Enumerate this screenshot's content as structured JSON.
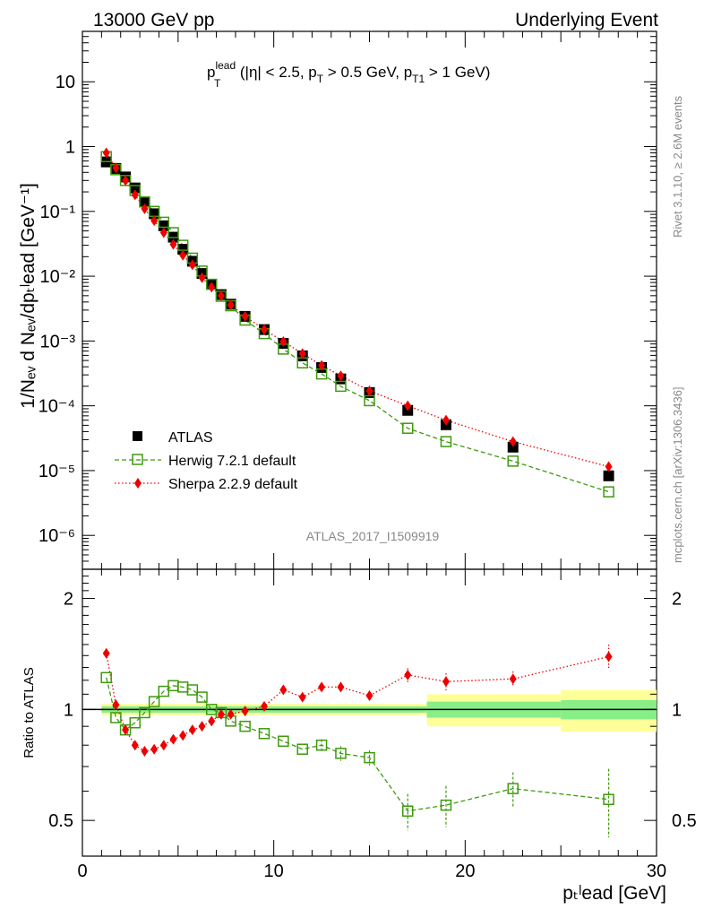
{
  "header": {
    "left": "13000 GeV pp",
    "right": "Underlying Event"
  },
  "plot_title": {
    "main": "p",
    "sup": "lead",
    "sub": "T",
    "rest1": " (|η| < 2.5, p",
    "sub2": "T",
    "rest2": " > 0.5 GeV, p",
    "sub3": "T1",
    "rest3": " > 1 GeV)"
  },
  "side": {
    "rivet": "Rivet 3.1.10, ≥ 2.6M events",
    "mcplots": "mcplots.cern.ch [arXiv:1306.3436]"
  },
  "watermark": "ATLAS_2017_I1509919",
  "axes": {
    "ylabel_main": "1/Nₑᵥ d Nₑᵥ/dpₜˡead [GeV⁻¹]",
    "ylabel_ratio": "Ratio to ATLAS",
    "xlabel": "pₜˡead [GeV]",
    "x_ticks": [
      "0",
      "10",
      "20",
      "30"
    ],
    "main_ticks": [
      "10",
      "1",
      "10⁻¹",
      "10⁻²",
      "10⁻³",
      "10⁻⁴",
      "10⁻⁵",
      "10⁻⁶"
    ],
    "ratio_ticks": [
      "2",
      "1",
      "0.5"
    ]
  },
  "legend": [
    {
      "label": "ATLAS",
      "style": "data"
    },
    {
      "label": "Herwig 7.2.1 default",
      "style": "herwig"
    },
    {
      "label": "Sherpa 2.2.9 default",
      "style": "sherpa"
    }
  ],
  "colors": {
    "herwig": "#3e9a0e",
    "sherpa": "#ee0000",
    "data": "#000000",
    "band_inner": "#88ee88",
    "band_outer": "#ffff99"
  },
  "chart_data": {
    "type": "scatter",
    "xlim": [
      0,
      30
    ],
    "main_ylim": [
      3e-07,
      60
    ],
    "main_yscale": "log",
    "ratio_ylim": [
      0.4,
      2.4
    ],
    "ratio_yscale": "log",
    "x": [
      1.25,
      1.75,
      2.25,
      2.75,
      3.25,
      3.75,
      4.25,
      4.75,
      5.25,
      5.75,
      6.25,
      6.75,
      7.25,
      7.75,
      8.5,
      9.5,
      10.5,
      11.5,
      12.5,
      13.5,
      15,
      17,
      19,
      22.5,
      27.5
    ],
    "series": [
      {
        "name": "ATLAS",
        "values": [
          0.58,
          0.46,
          0.34,
          0.23,
          0.14,
          0.092,
          0.06,
          0.04,
          0.026,
          0.017,
          0.011,
          0.0075,
          0.0052,
          0.0037,
          0.0024,
          0.0015,
          0.00092,
          0.00059,
          0.00039,
          0.00026,
          0.00016,
          8.5e-05,
          5.1e-05,
          2.3e-05,
          8.3e-06
        ]
      },
      {
        "name": "Herwig 7.2.1 default",
        "values": [
          0.7,
          0.44,
          0.3,
          0.21,
          0.14,
          0.1,
          0.068,
          0.047,
          0.03,
          0.019,
          0.012,
          0.0075,
          0.0049,
          0.0035,
          0.0021,
          0.0013,
          0.00075,
          0.00046,
          0.00031,
          0.0002,
          0.00012,
          4.5e-05,
          2.8e-05,
          1.4e-05,
          4.7e-06
        ]
      },
      {
        "name": "Sherpa 2.2.9 default",
        "values": [
          0.8,
          0.47,
          0.3,
          0.18,
          0.11,
          0.072,
          0.047,
          0.031,
          0.021,
          0.015,
          0.0095,
          0.0068,
          0.005,
          0.0036,
          0.0024,
          0.0015,
          0.00098,
          0.00064,
          0.00042,
          0.00029,
          0.00017,
          0.0001,
          6e-05,
          2.8e-05,
          1.15e-05
        ]
      }
    ],
    "ratios": {
      "herwig": [
        1.22,
        0.95,
        0.88,
        0.92,
        0.98,
        1.05,
        1.12,
        1.16,
        1.15,
        1.13,
        1.08,
        1.0,
        0.98,
        0.93,
        0.9,
        0.86,
        0.82,
        0.78,
        0.8,
        0.76,
        0.74,
        0.53,
        0.55,
        0.61,
        0.57
      ],
      "herwig_err": [
        0.01,
        0.01,
        0.01,
        0.01,
        0.01,
        0.01,
        0.01,
        0.01,
        0.01,
        0.01,
        0.01,
        0.01,
        0.01,
        0.01,
        0.01,
        0.01,
        0.015,
        0.02,
        0.03,
        0.035,
        0.035,
        0.06,
        0.07,
        0.065,
        0.12
      ],
      "sherpa": [
        1.42,
        1.03,
        0.88,
        0.8,
        0.77,
        0.78,
        0.8,
        0.83,
        0.85,
        0.88,
        0.9,
        0.93,
        0.97,
        0.97,
        0.99,
        1.02,
        1.13,
        1.08,
        1.15,
        1.15,
        1.09,
        1.24,
        1.19,
        1.21,
        1.39
      ]
    },
    "uncertainty_bands": {
      "edges": [
        1,
        18,
        25,
        30
      ],
      "inner": [
        0.02,
        0.05,
        0.06
      ],
      "outer": [
        0.035,
        0.1,
        0.13
      ]
    }
  }
}
